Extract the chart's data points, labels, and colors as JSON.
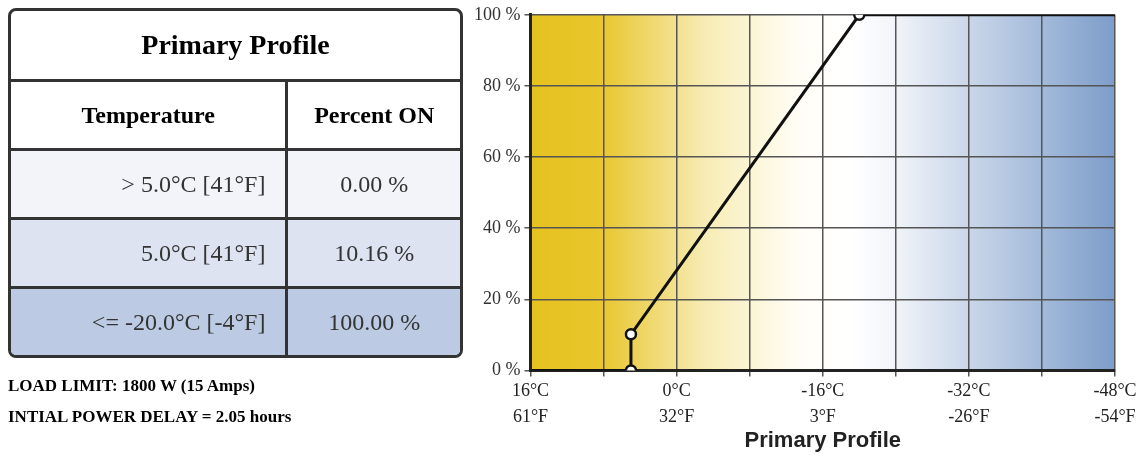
{
  "chart_data": [
    {
      "type": "other",
      "title": "Primary Profile",
      "annotations": [
        "Temperature",
        "Percent ON",
        "> 5.0°C [41°F]",
        "0.00 %",
        "5.0°C [41°F]",
        "10.16 %",
        "<= -20.0°C [-4°F]",
        "100.00 %",
        "LOAD LIMIT: 1800 W (15 Amps)",
        "INTIAL POWER DELAY = 2.05 hours"
      ]
    },
    {
      "type": "line",
      "xlabel": "Primary Profile",
      "xlim": [
        16,
        -48
      ],
      "ylim": [
        0,
        100
      ],
      "xticks": [
        {
          "value": 16,
          "label": "16°C"
        },
        {
          "value": 8,
          "label": null
        },
        {
          "value": 0,
          "label": "0°C"
        },
        {
          "value": -8,
          "label": null
        },
        {
          "value": -16,
          "label": "-16°C"
        },
        {
          "value": -24,
          "label": null
        },
        {
          "value": -32,
          "label": "-32°C"
        },
        {
          "value": -40,
          "label": null
        },
        {
          "value": -48,
          "label": "-48°C"
        }
      ],
      "x2lim": [
        60.8,
        -54.4
      ],
      "x2ticks": [
        {
          "value": 60.8,
          "label": "61°F"
        },
        {
          "value": 32,
          "label": "32°F"
        },
        {
          "value": 3.2,
          "label": "3°F"
        },
        {
          "value": -25.6,
          "label": "-26°F"
        },
        {
          "value": -54.4,
          "label": "-54°F"
        }
      ],
      "yticks": [
        {
          "value": 0,
          "label": "0 %"
        },
        {
          "value": 20,
          "label": "20 %"
        },
        {
          "value": 40,
          "label": "40 %"
        },
        {
          "value": 60,
          "label": "60 %"
        },
        {
          "value": 80,
          "label": "80 %"
        },
        {
          "value": 100,
          "label": "100 %"
        }
      ],
      "grid": true,
      "series": [
        {
          "type": "line",
          "color": "#111111",
          "marker": "none",
          "x": [
            16,
            5,
            5,
            -20,
            -48
          ],
          "values": [
            0,
            0,
            10.16,
            100,
            100
          ]
        },
        {
          "type": "scatter",
          "color": "#111111",
          "marker": "circle",
          "x": [
            5,
            5,
            -20
          ],
          "values": [
            0,
            10.16,
            100
          ]
        }
      ]
    }
  ]
}
